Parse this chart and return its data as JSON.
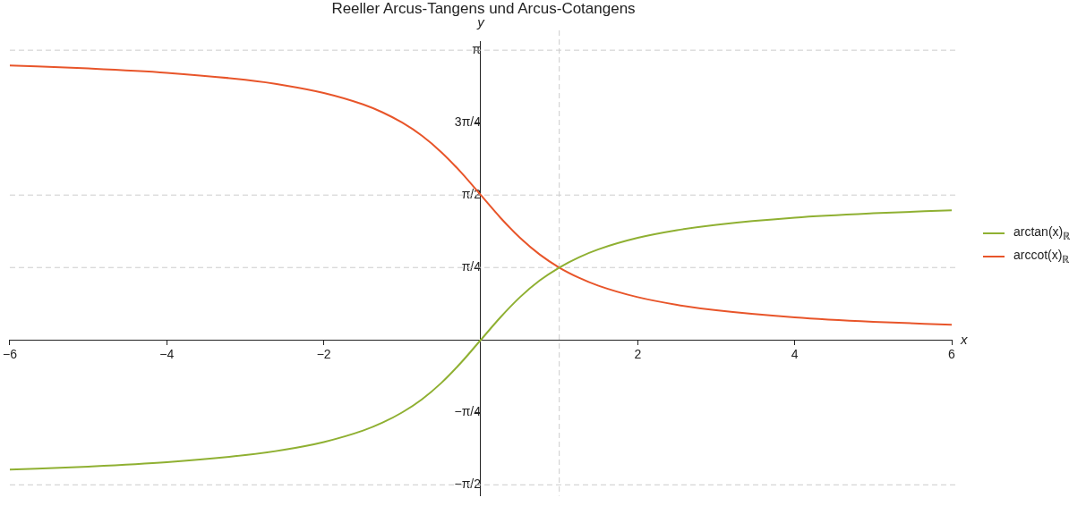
{
  "chart_data": {
    "type": "line",
    "title": "Reeller Arcus-Tangens und Arcus-Cotangens",
    "xlabel": "x",
    "ylabel": "y",
    "x": [
      -6,
      -5,
      -4,
      -3,
      -2.5,
      -2,
      -1.5,
      -1.25,
      -1,
      -0.75,
      -0.5,
      -0.25,
      0,
      0.25,
      0.5,
      0.75,
      1,
      1.25,
      1.5,
      2,
      2.5,
      3,
      4,
      5,
      6
    ],
    "series": [
      {
        "name": "arctan(x)$_{ℝ}$",
        "color": "#8fb032",
        "values": [
          -1.406,
          -1.373,
          -1.326,
          -1.249,
          -1.19,
          -1.107,
          -0.983,
          -0.896,
          -0.785,
          -0.644,
          -0.464,
          -0.245,
          0,
          0.245,
          0.464,
          0.644,
          0.785,
          0.896,
          0.983,
          1.107,
          1.19,
          1.249,
          1.326,
          1.373,
          1.406
        ]
      },
      {
        "name": "arccot(x)$_{ℝ}$",
        "color": "#e8552a",
        "values": [
          2.977,
          2.944,
          2.897,
          2.82,
          2.761,
          2.678,
          2.554,
          2.467,
          2.356,
          2.215,
          2.034,
          1.816,
          1.571,
          1.326,
          1.107,
          0.927,
          0.785,
          0.675,
          0.588,
          0.464,
          0.381,
          0.322,
          0.245,
          0.197,
          0.165
        ]
      }
    ],
    "xlim": [
      -6,
      6
    ],
    "xticks": [
      -6,
      -4,
      -2,
      2,
      4,
      6
    ],
    "ylim": [
      -1.69,
      3.24
    ],
    "yticks": [
      {
        "value": 3.1416,
        "label": "π"
      },
      {
        "value": 2.3562,
        "label": "3π/4"
      },
      {
        "value": 1.5708,
        "label": "π/2"
      },
      {
        "value": 0.7854,
        "label": "π/4"
      },
      {
        "value": -0.7854,
        "label": "−π/4"
      },
      {
        "value": -1.5708,
        "label": "−π/2"
      }
    ],
    "ref_lines": [
      {
        "axis": "y",
        "value": 3.1416,
        "color": "#cccccc",
        "line_style": "dashed"
      },
      {
        "axis": "y",
        "value": 1.5708,
        "color": "#cccccc",
        "line_style": "dashed"
      },
      {
        "axis": "y",
        "value": 0.7854,
        "color": "#cccccc",
        "line_style": "dashed"
      },
      {
        "axis": "y",
        "value": -1.5708,
        "color": "#cccccc",
        "line_style": "dashed"
      },
      {
        "axis": "x",
        "value": 1,
        "color": "#cccccc",
        "line_style": "dashed"
      }
    ],
    "grid": false,
    "legend": "right",
    "marker": "none",
    "line_style": "solid"
  }
}
